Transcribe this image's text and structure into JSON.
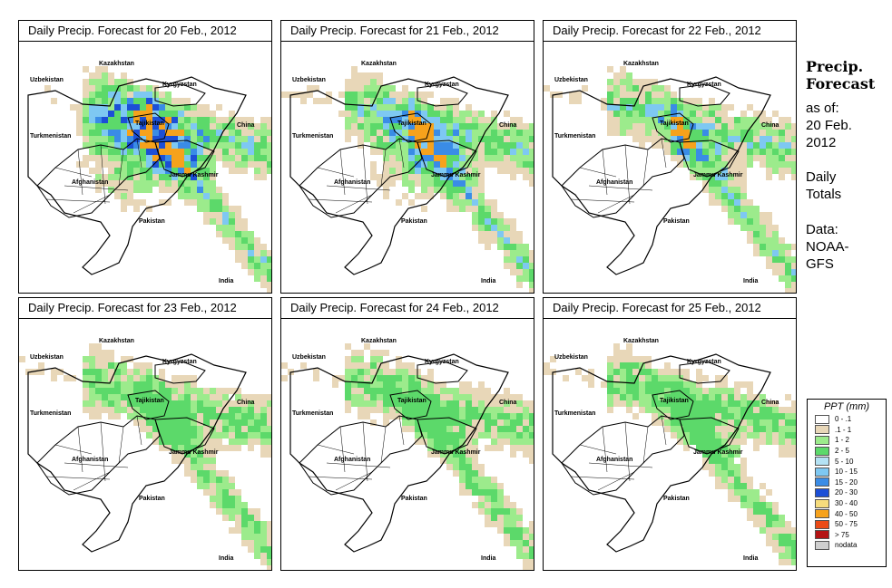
{
  "panels": [
    {
      "id": "p1",
      "title": "Daily Precip. Forecast for  20 Feb., 2012",
      "intensity": 3,
      "places": {
        "kazakhstan": "Kazakhstan",
        "uzbekistan": "Uzbekistan",
        "kyrgyzstan": "Kyrgyzstan",
        "tajikistan": "Tajikistan",
        "china": "China",
        "turkmenistan": "Turkmenistan",
        "jammu": "Jammu Kashmir",
        "afghanistan": "Afghanistan",
        "pakistan": "Pakistan",
        "india": "India"
      }
    },
    {
      "id": "p2",
      "title": "Daily Precip. Forecast for  21 Feb., 2012",
      "intensity": 2,
      "places": {
        "kazakhstan": "Kazakhstan",
        "uzbekistan": "Uzbekistan",
        "kyrgyzstan": "Kyrgyzstan",
        "tajikistan": "Tajikistan",
        "china": "China",
        "turkmenistan": "Turkmenistan",
        "jammu": "Jammu Kashmir",
        "afghanistan": "Afghanistan",
        "pakistan": "Pakistan",
        "india": "India"
      }
    },
    {
      "id": "p3",
      "title": "Daily Precip. Forecast for  22 Feb., 2012",
      "intensity": 2,
      "places": {
        "kazakhstan": "Kazakhstan",
        "uzbekistan": "Uzbekistan",
        "kyrgyzstan": "Kyrgyzstan",
        "tajikistan": "Tajikistan",
        "china": "China",
        "turkmenistan": "Turkmenistan",
        "jammu": "Jammu Kashmir",
        "afghanistan": "Afghanistan",
        "pakistan": "Pakistan",
        "india": "India"
      }
    },
    {
      "id": "p4",
      "title": "Daily Precip. Forecast for  23 Feb., 2012",
      "intensity": 1,
      "places": {
        "kazakhstan": "Kazakhstan",
        "uzbekistan": "Uzbekistan",
        "kyrgyzstan": "Kyrgyzstan",
        "tajikistan": "Tajikistan",
        "china": "China",
        "turkmenistan": "Turkmenistan",
        "jammu": "Jammu Kashmir",
        "afghanistan": "Afghanistan",
        "pakistan": "Pakistan",
        "india": "India"
      }
    },
    {
      "id": "p5",
      "title": "Daily Precip. Forecast for  24 Feb., 2012",
      "intensity": 1,
      "places": {
        "kazakhstan": "Kazakhstan",
        "uzbekistan": "Uzbekistan",
        "kyrgyzstan": "Kyrgyzstan",
        "tajikistan": "Tajikistan",
        "china": "China",
        "turkmenistan": "Turkmenistan",
        "jammu": "Jammu Kashmir",
        "afghanistan": "Afghanistan",
        "pakistan": "Pakistan",
        "india": "India"
      }
    },
    {
      "id": "p6",
      "title": "Daily Precip. Forecast for  25 Feb., 2012",
      "intensity": 1,
      "places": {
        "kazakhstan": "Kazakhstan",
        "uzbekistan": "Uzbekistan",
        "kyrgyzstan": "Kyrgyzstan",
        "tajikistan": "Tajikistan",
        "china": "China",
        "turkmenistan": "Turkmenistan",
        "jammu": "Jammu Kashmir",
        "afghanistan": "Afghanistan",
        "pakistan": "Pakistan",
        "india": "India"
      }
    }
  ],
  "sidebar": {
    "title_line1": "Precip.",
    "title_line2": "Forecast",
    "asof_line1": "as of:",
    "asof_line2": "20 Feb.",
    "asof_line3": "2012",
    "daily_line1": "Daily",
    "daily_line2": "Totals",
    "data_line1": "Data:",
    "data_line2": "NOAA-",
    "data_line3": "GFS"
  },
  "legend": {
    "title": "PPT (mm)",
    "items": [
      {
        "label": "0 - .1",
        "color": "#ffffff"
      },
      {
        "label": ".1 - 1",
        "color": "#e8d7b8"
      },
      {
        "label": "1 - 2",
        "color": "#9ceb8c"
      },
      {
        "label": "2 - 5",
        "color": "#5cd96a"
      },
      {
        "label": "5 - 10",
        "color": "#b4e2f4"
      },
      {
        "label": "10 - 15",
        "color": "#7ec8f2"
      },
      {
        "label": "15 - 20",
        "color": "#3a8ce6"
      },
      {
        "label": "20 - 30",
        "color": "#1c4fd6"
      },
      {
        "label": "30 - 40",
        "color": "#f6dc7c"
      },
      {
        "label": "40 - 50",
        "color": "#f6a21c"
      },
      {
        "label": "50 - 75",
        "color": "#ea4a16"
      },
      {
        "label": "> 75",
        "color": "#b41414"
      },
      {
        "label": "nodata",
        "color": "#cfcfcf"
      }
    ]
  }
}
